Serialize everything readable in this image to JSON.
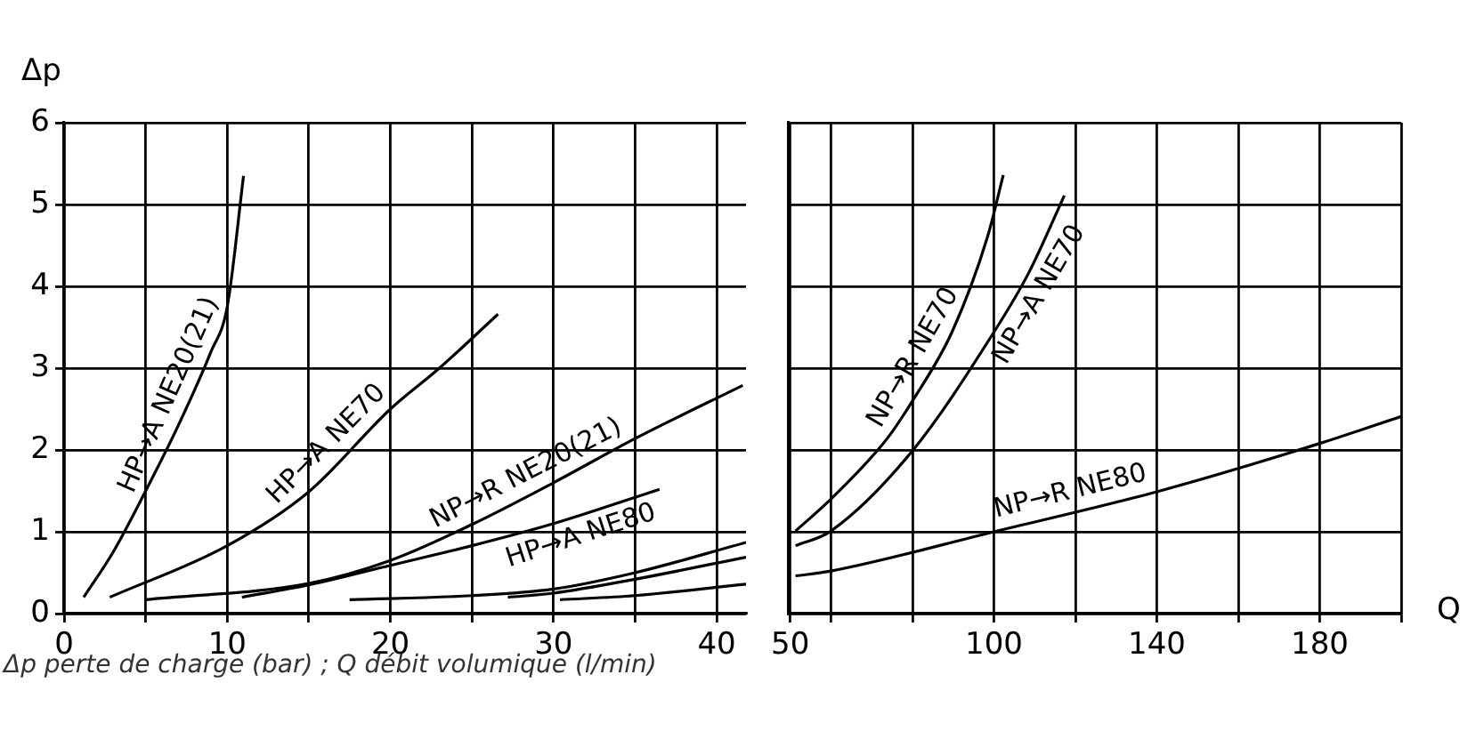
{
  "chart_data": [
    {
      "type": "line",
      "ylabel": "Δp",
      "marker": "none",
      "grid": true,
      "legend": false,
      "xlim": [
        0,
        41.8
      ],
      "ylim": [
        0,
        6
      ],
      "xticks": [
        0,
        {
          "value": 5,
          "label": null
        },
        10,
        {
          "value": 15,
          "label": null
        },
        20,
        {
          "value": 25,
          "label": null
        },
        30,
        {
          "value": 35,
          "label": null
        },
        40
      ],
      "yticks": [
        0,
        1,
        2,
        3,
        4,
        5,
        6
      ],
      "annotations": [
        "Δp perte de charge (bar) ; Q débit volumique (l/min)"
      ],
      "series": [
        {
          "name": "HP→A NE20(21)",
          "color": "#000000",
          "x": [
            1.2,
            3,
            5,
            7,
            9,
            10,
            11
          ],
          "values": [
            0.2,
            0.75,
            1.5,
            2.3,
            3.2,
            3.75,
            5.35
          ]
        },
        {
          "name": "HP→A NE70",
          "color": "#000000",
          "x": [
            2.8,
            10,
            15,
            20,
            23,
            26.6
          ],
          "values": [
            0.2,
            0.83,
            1.49,
            2.5,
            3,
            3.66
          ]
        },
        {
          "name": "NP→R NE20(21)",
          "color": "#000000",
          "x": [
            5,
            15,
            20,
            25,
            30,
            35,
            41.6
          ],
          "values": [
            0.17,
            0.37,
            0.65,
            1.09,
            1.6,
            2.14,
            2.79
          ]
        },
        {
          "name": "HP→A NE80",
          "color": "#000000",
          "x": [
            10.9,
            15,
            20,
            25,
            30,
            36.5
          ],
          "values": [
            0.2,
            0.35,
            0.59,
            0.83,
            1.1,
            1.52
          ]
        },
        {
          "color": "#000000",
          "x": [
            17.5,
            25,
            30,
            35,
            41.8
          ],
          "values": [
            0.17,
            0.22,
            0.3,
            0.5,
            0.87
          ]
        },
        {
          "color": "#000000",
          "x": [
            27.2,
            30,
            35,
            41.8
          ],
          "values": [
            0.2,
            0.25,
            0.42,
            0.69
          ]
        },
        {
          "color": "#000000",
          "x": [
            30.4,
            35,
            41.8
          ],
          "values": [
            0.17,
            0.22,
            0.36
          ]
        }
      ]
    },
    {
      "type": "line",
      "xlabel": "Q",
      "marker": "none",
      "grid": true,
      "legend": false,
      "tick_labels": "x",
      "xlim": [
        49.6,
        200
      ],
      "ylim": [
        0,
        6
      ],
      "xticks": [
        50,
        {
          "value": 60,
          "label": null
        },
        {
          "value": 80,
          "label": null
        },
        100,
        {
          "value": 120,
          "label": null
        },
        140,
        {
          "value": 160,
          "label": null
        },
        180,
        {
          "value": 200,
          "label": null
        }
      ],
      "yticks": [
        0,
        1,
        2,
        3,
        4,
        5,
        6
      ],
      "series": [
        {
          "name": "NP→R NE70",
          "color": "#000000",
          "x": [
            51.3,
            60,
            73.8,
            80,
            89.7,
            98.4,
            102.3
          ],
          "values": [
            1.01,
            1.4,
            2.14,
            2.6,
            3.44,
            4.6,
            5.36
          ]
        },
        {
          "name": "NP→A NE70",
          "color": "#000000",
          "x": [
            51.3,
            60,
            80,
            100,
            108.6,
            117.3
          ],
          "values": [
            0.83,
            1.01,
            1.99,
            3.44,
            4.17,
            5.11
          ]
        },
        {
          "name": "NP→R NE80",
          "color": "#000000",
          "x": [
            51.3,
            60,
            100,
            140,
            180,
            200
          ],
          "values": [
            0.46,
            0.52,
            1.0,
            1.49,
            2.08,
            2.41
          ]
        }
      ]
    }
  ]
}
